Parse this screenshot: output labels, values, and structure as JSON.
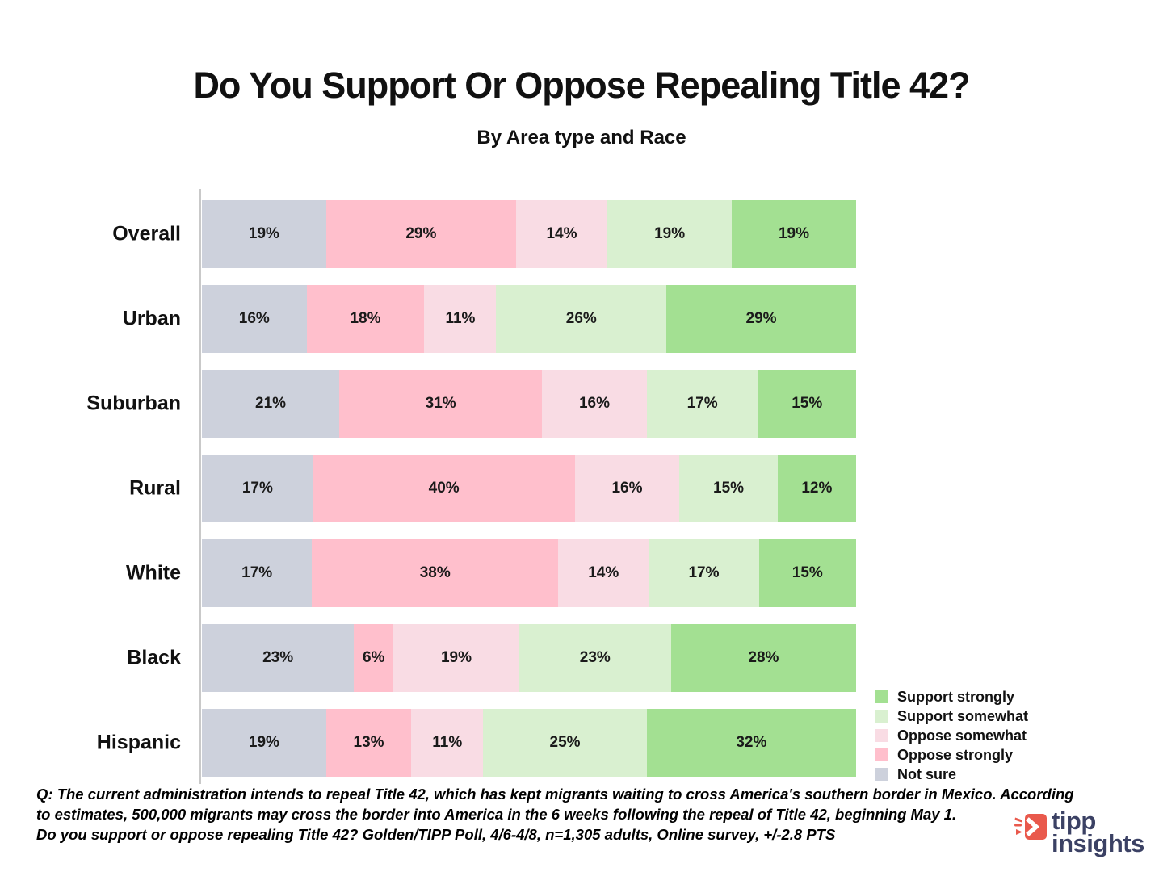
{
  "header": {
    "title": "Do You Support Or Oppose Repealing Title 42?",
    "subtitle": "By Area type and Race"
  },
  "chart_data": {
    "type": "bar",
    "stacked": true,
    "orientation": "horizontal",
    "normalized_to_100pct": true,
    "value_suffix": "%",
    "xlim": [
      0,
      100
    ],
    "grid": false,
    "legend_position": "bottom-right",
    "categories": [
      "Overall",
      "Urban",
      "Suburban",
      "Rural",
      "White",
      "Black",
      "Hispanic"
    ],
    "series": [
      {
        "name": "Not sure",
        "color": "#cdd1dc",
        "values": [
          19,
          16,
          21,
          17,
          17,
          23,
          19
        ]
      },
      {
        "name": "Oppose strongly",
        "color": "#ffbfcc",
        "values": [
          29,
          18,
          31,
          40,
          38,
          6,
          13
        ]
      },
      {
        "name": "Oppose somewhat",
        "color": "#f9dce4",
        "values": [
          14,
          11,
          16,
          16,
          14,
          19,
          11
        ]
      },
      {
        "name": "Support somewhat",
        "color": "#d9f0d0",
        "values": [
          19,
          26,
          17,
          15,
          17,
          23,
          25
        ]
      },
      {
        "name": "Support strongly",
        "color": "#a3e092",
        "values": [
          19,
          29,
          15,
          12,
          15,
          28,
          32
        ]
      }
    ],
    "legend_order": [
      "Support strongly",
      "Support somewhat",
      "Oppose somewhat",
      "Oppose strongly",
      "Not sure"
    ]
  },
  "footer": {
    "lines": [
      "Q: The current administration intends to repeal Title 42, which has kept migrants waiting to cross America's southern border  in Mexico. According",
      "to estimates, 500,000 migrants may cross the border into America in the 6 weeks following the repeal of Title 42, beginning May 1.",
      "Do you support or oppose repealing Title 42?  Golden/TIPP Poll, 4/6-4/8, n=1,305 adults, Online survey, +/-2.8 PTS"
    ]
  },
  "logo": {
    "line1": "tipp",
    "line2": "insights",
    "accent_color": "#e9594c",
    "text_color": "#3b4164"
  }
}
